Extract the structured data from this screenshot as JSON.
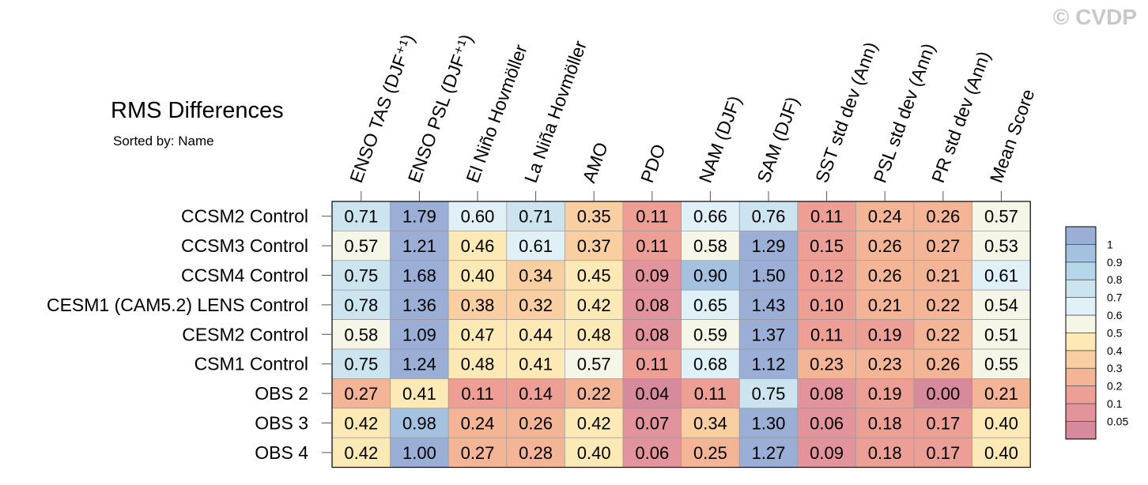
{
  "title": "RMS Differences",
  "subtitle": "Sorted by: Name",
  "watermark": "© CVDP",
  "chart_data": {
    "type": "heatmap",
    "title": "RMS Differences",
    "subtitle": "Sorted by: Name",
    "columns": [
      "ENSO TAS (DJF⁺¹)",
      "ENSO PSL (DJF⁺¹)",
      "El Niño Hovmöller",
      "La Niña Hovmöller",
      "AMO",
      "PDO",
      "NAM (DJF)",
      "SAM (DJF)",
      "SST std dev (Ann)",
      "PSL std dev (Ann)",
      "PR std dev (Ann)",
      "Mean Score"
    ],
    "rows": [
      "CCSM2 Control",
      "CCSM3 Control",
      "CCSM4 Control",
      "CESM1 (CAM5.2) LENS Control",
      "CESM2 Control",
      "CSM1 Control",
      "OBS 2",
      "OBS 3",
      "OBS 4"
    ],
    "values": [
      [
        0.71,
        1.79,
        0.6,
        0.71,
        0.35,
        0.11,
        0.66,
        0.76,
        0.11,
        0.24,
        0.26,
        0.57
      ],
      [
        0.57,
        1.21,
        0.46,
        0.61,
        0.37,
        0.11,
        0.58,
        1.29,
        0.15,
        0.26,
        0.27,
        0.53
      ],
      [
        0.75,
        1.68,
        0.4,
        0.34,
        0.45,
        0.09,
        0.9,
        1.5,
        0.12,
        0.26,
        0.21,
        0.61
      ],
      [
        0.78,
        1.36,
        0.38,
        0.32,
        0.42,
        0.08,
        0.65,
        1.43,
        0.1,
        0.21,
        0.22,
        0.54
      ],
      [
        0.58,
        1.09,
        0.47,
        0.44,
        0.48,
        0.08,
        0.59,
        1.37,
        0.11,
        0.19,
        0.22,
        0.51
      ],
      [
        0.75,
        1.24,
        0.48,
        0.41,
        0.57,
        0.11,
        0.68,
        1.12,
        0.23,
        0.23,
        0.26,
        0.55
      ],
      [
        0.27,
        0.41,
        0.11,
        0.14,
        0.22,
        0.04,
        0.11,
        0.75,
        0.08,
        0.19,
        0.0,
        0.21
      ],
      [
        0.42,
        0.98,
        0.24,
        0.26,
        0.42,
        0.07,
        0.34,
        1.3,
        0.06,
        0.18,
        0.17,
        0.4
      ],
      [
        0.42,
        1.0,
        0.27,
        0.28,
        0.4,
        0.06,
        0.25,
        1.27,
        0.09,
        0.18,
        0.17,
        0.4
      ]
    ],
    "colorbar": {
      "levels": [
        0.05,
        0.1,
        0.2,
        0.3,
        0.4,
        0.5,
        0.6,
        0.7,
        0.8,
        0.9,
        1
      ],
      "labels": [
        "0.05",
        "0.1",
        "0.2",
        "0.3",
        "0.4",
        "0.5",
        "0.6",
        "0.7",
        "0.8",
        "0.9",
        "1"
      ],
      "colors": [
        "#d68a9c",
        "#e3939b",
        "#ed9f96",
        "#f4b597",
        "#f9cfa2",
        "#fde9b6",
        "#f5f5e8",
        "#e0f0f7",
        "#cbe4f0",
        "#b6d6ea",
        "#a4c2e0",
        "#9aaed6"
      ]
    }
  }
}
